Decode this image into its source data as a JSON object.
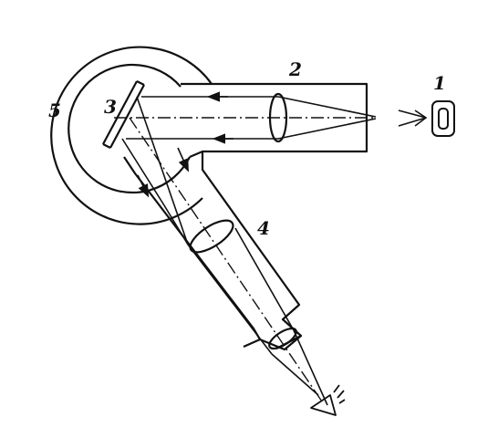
{
  "diagram": {
    "labels": {
      "source": "1",
      "collimator": "2",
      "grating": "3",
      "telescope": "4",
      "table": "5"
    },
    "colors": {
      "ink": "#111111",
      "paper": "#ffffff"
    }
  }
}
